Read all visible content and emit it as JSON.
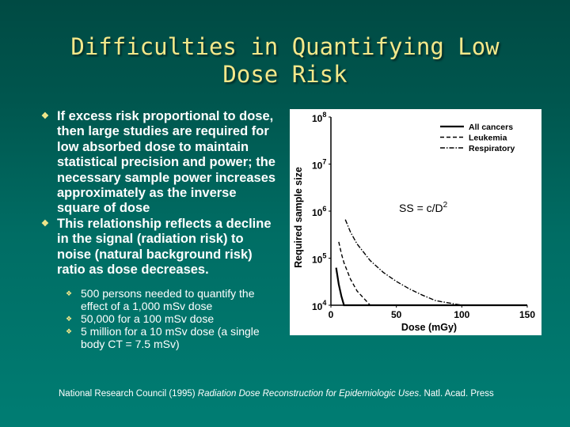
{
  "title_line1": "Difficulties in Quantifying Low",
  "title_line2": "Dose Risk",
  "bullets": [
    "If excess risk proportional to dose, then large studies are required for low absorbed dose to maintain statistical precision and power; the necessary sample power increases approximately as the inverse square of dose",
    "This relationship reflects a decline in the signal (radiation risk) to noise (natural background risk) ratio as dose decreases."
  ],
  "sub_bullets": [
    "500 persons needed to quantify the effect of a 1,000 mSv dose",
    "50,000 for a 100 mSv dose",
    "5 million for a 10 mSv dose (a single body CT = 7.5 mSv)"
  ],
  "reference": {
    "before": "National Research Council (1995) ",
    "italic": "Radiation Dose Reconstruction for Epidemiologic Uses",
    "after": ". Natl. Acad. Press"
  },
  "colors": {
    "title": "#f3e88a",
    "bullet_marker": "#f3e88a",
    "text": "#ffffff",
    "background": "#006d64",
    "chart_background": "#ffffff",
    "chart_ink": "#000000"
  },
  "chart_data": {
    "type": "line",
    "ylabel": "Required sample size",
    "xlabel": "Dose (mGy)",
    "y_scale": "log",
    "xlim": [
      0,
      150
    ],
    "ylim": [
      10000,
      100000000
    ],
    "x_ticks": [
      "0",
      "50",
      "100",
      "150"
    ],
    "y_ticks": [
      {
        "value": 10000,
        "base": "10",
        "exp": "4"
      },
      {
        "value": 100000,
        "base": "10",
        "exp": "5"
      },
      {
        "value": 1000000,
        "base": "10",
        "exp": "6"
      },
      {
        "value": 10000000,
        "base": "10",
        "exp": "7"
      },
      {
        "value": 100000000,
        "base": "10",
        "exp": "8"
      }
    ],
    "annotation": {
      "text": "SS = c/D",
      "sup": "2"
    },
    "legend_position": "top-right",
    "series": [
      {
        "name": "All cancers",
        "style": "solid",
        "c": 1000000,
        "x": [
          4,
          6,
          8,
          10,
          15,
          20,
          30,
          40,
          50,
          60,
          70,
          80,
          100,
          120,
          150
        ]
      },
      {
        "name": "Leukemia",
        "style": "dashed",
        "c": 8000000,
        "x": [
          6,
          8,
          10,
          15,
          20,
          30,
          40,
          50,
          60,
          70,
          80,
          100,
          120,
          150
        ]
      },
      {
        "name": "Respiratory",
        "style": "dashdot",
        "c": 80000000,
        "x": [
          11,
          15,
          20,
          30,
          40,
          50,
          60,
          70,
          80,
          100,
          120,
          150
        ]
      }
    ]
  }
}
